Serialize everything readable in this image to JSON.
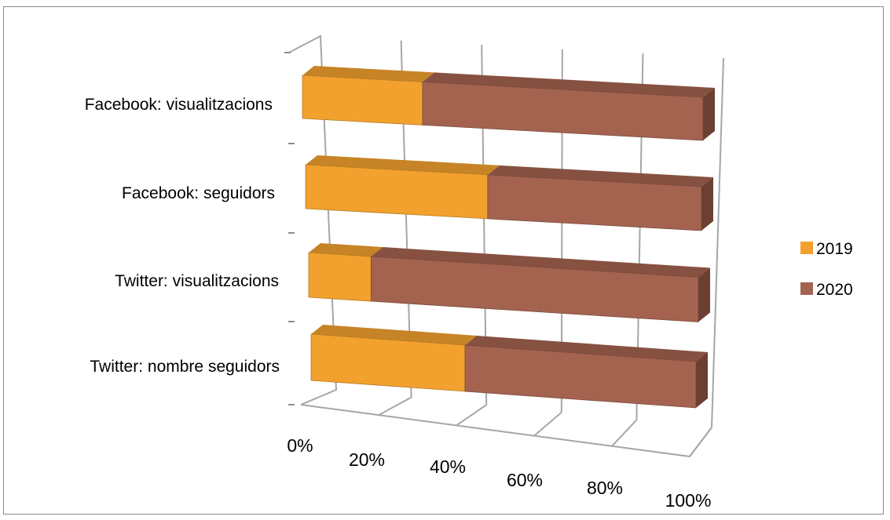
{
  "chart_data": {
    "type": "bar",
    "subtype": "stacked-100-percent-horizontal-3d",
    "categories": [
      "Facebook: visualitzacions",
      "Facebook: seguidors",
      "Twitter: visualitzacions",
      "Twitter: nombre seguidors"
    ],
    "series": [
      {
        "name": "2019",
        "color": "#F2A12E",
        "values": [
          30,
          46,
          16,
          40
        ]
      },
      {
        "name": "2020",
        "color": "#A4634F",
        "values": [
          70,
          54,
          84,
          60
        ]
      }
    ],
    "x_ticks": [
      "0%",
      "20%",
      "40%",
      "60%",
      "80%",
      "100%"
    ],
    "xlim": [
      0,
      100
    ],
    "grid": true,
    "legend_position": "right"
  }
}
